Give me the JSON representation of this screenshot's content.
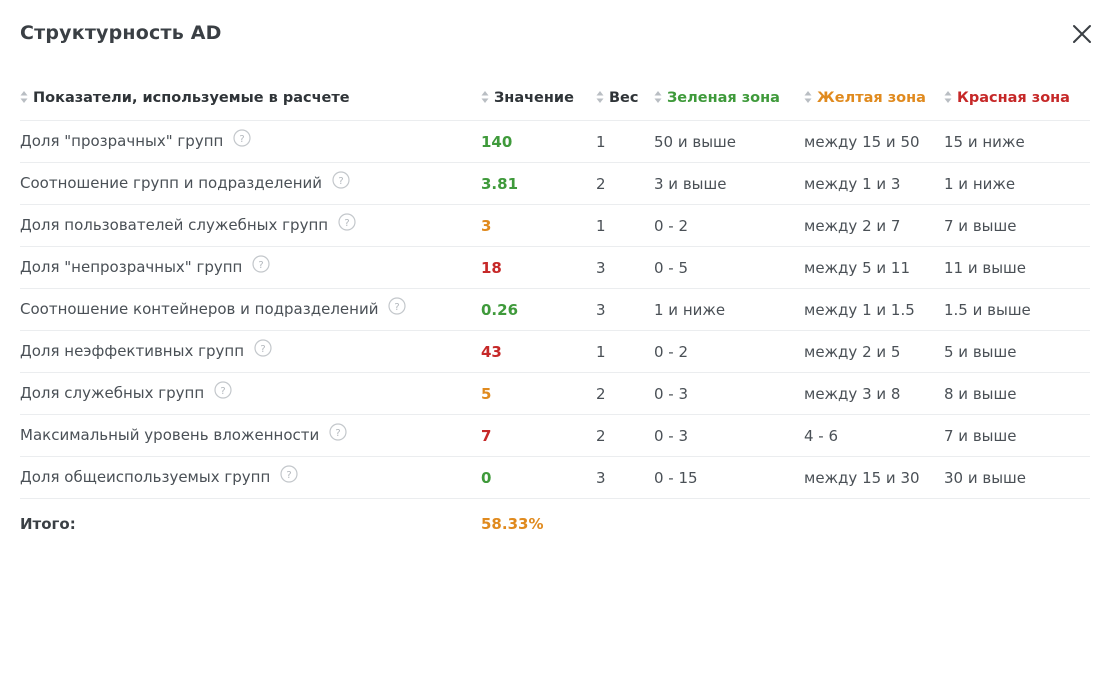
{
  "title": "Структурность AD",
  "colors": {
    "green": "#3f9a3b",
    "orange": "#e08a1e",
    "red": "#c62828"
  },
  "table": {
    "headers": {
      "metric": "Показатели, используемые в расчете",
      "value": "Значение",
      "weight": "Вес",
      "green_zone": "Зеленая зона",
      "yellow_zone": "Желтая зона",
      "red_zone": "Красная зона"
    },
    "rows": [
      {
        "metric": "Доля \"прозрачных\" групп",
        "value": "140",
        "status": "green",
        "weight": "1",
        "green": "50 и выше",
        "yellow": "между 15 и 50",
        "red": "15 и ниже"
      },
      {
        "metric": "Соотношение групп и подразделений",
        "value": "3.81",
        "status": "green",
        "weight": "2",
        "green": "3 и выше",
        "yellow": "между 1 и 3",
        "red": "1 и ниже"
      },
      {
        "metric": "Доля пользователей служебных групп",
        "value": "3",
        "status": "orange",
        "weight": "1",
        "green": "0 - 2",
        "yellow": "между 2 и 7",
        "red": "7 и выше"
      },
      {
        "metric": "Доля \"непрозрачных\" групп",
        "value": "18",
        "status": "red",
        "weight": "3",
        "green": "0 - 5",
        "yellow": "между 5 и 11",
        "red": "11 и выше"
      },
      {
        "metric": "Соотношение контейнеров и подразделений",
        "value": "0.26",
        "status": "green",
        "weight": "3",
        "green": "1 и ниже",
        "yellow": "между 1 и 1.5",
        "red": "1.5 и выше"
      },
      {
        "metric": "Доля неэффективных групп",
        "value": "43",
        "status": "red",
        "weight": "1",
        "green": "0 - 2",
        "yellow": "между 2 и 5",
        "red": "5 и выше"
      },
      {
        "metric": "Доля служебных групп",
        "value": "5",
        "status": "orange",
        "weight": "2",
        "green": "0 - 3",
        "yellow": "между 3 и 8",
        "red": "8 и выше"
      },
      {
        "metric": "Максимальный уровень вложенности",
        "value": "7",
        "status": "red",
        "weight": "2",
        "green": "0 - 3",
        "yellow": "4 - 6",
        "red": "7 и выше"
      },
      {
        "metric": "Доля общеиспользуемых групп",
        "value": "0",
        "status": "green",
        "weight": "3",
        "green": "0 - 15",
        "yellow": "между 15 и 30",
        "red": "30 и выше"
      }
    ],
    "total": {
      "label": "Итого:",
      "value": "58.33%",
      "status": "orange"
    }
  },
  "icons": {
    "close": "close-icon",
    "sort": "sort-icon",
    "help": "help-icon"
  }
}
